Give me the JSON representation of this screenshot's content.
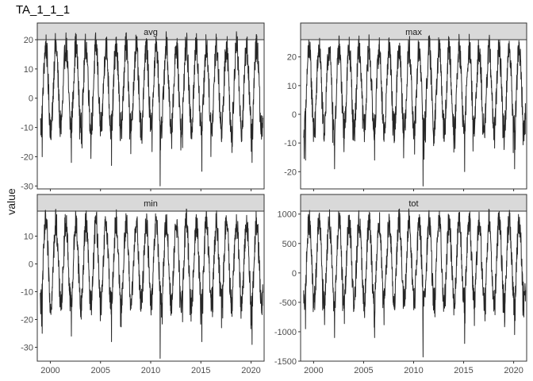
{
  "chart_data": {
    "type": "line",
    "title": "TA_1_1_1",
    "ylabel": "value",
    "xlabel": "",
    "grid": false,
    "facet_layout": "2x2",
    "x_range": [
      1998.7,
      2021.3
    ],
    "x_ticks": [
      2000,
      2005,
      2010,
      2015,
      2020
    ],
    "series_color": "#262626",
    "panels": [
      {
        "name": "avg",
        "ylim": [
          -31,
          20
        ],
        "y_ticks": [
          -30,
          -20,
          -10,
          0,
          10,
          20
        ],
        "cycle": {
          "start": 1999,
          "end": 2021,
          "peak": 18,
          "trough": -10,
          "noise": 5
        },
        "spikes": [
          {
            "x": 1999.2,
            "y": -20
          },
          {
            "x": 2002.1,
            "y": -22
          },
          {
            "x": 2006.1,
            "y": -23
          },
          {
            "x": 2010.95,
            "y": -30
          },
          {
            "x": 2015.1,
            "y": -25
          },
          {
            "x": 2020.1,
            "y": -22
          }
        ]
      },
      {
        "name": "max",
        "ylim": [
          -26,
          26
        ],
        "y_ticks": [
          -20,
          -10,
          0,
          10,
          20
        ],
        "cycle": {
          "start": 1999,
          "end": 2021,
          "peak": 23,
          "trough": -5,
          "noise": 5
        },
        "spikes": [
          {
            "x": 1999.2,
            "y": -16
          },
          {
            "x": 2002.1,
            "y": -19
          },
          {
            "x": 2006.1,
            "y": -16
          },
          {
            "x": 2010.95,
            "y": -25
          },
          {
            "x": 2015.1,
            "y": -20
          },
          {
            "x": 2020.1,
            "y": -19
          }
        ]
      },
      {
        "name": "min",
        "ylim": [
          -35,
          19
        ],
        "y_ticks": [
          -30,
          -20,
          -10,
          0,
          10
        ],
        "cycle": {
          "start": 1999,
          "end": 2021,
          "peak": 15,
          "trough": -14,
          "noise": 5
        },
        "spikes": [
          {
            "x": 1999.2,
            "y": -25
          },
          {
            "x": 2002.1,
            "y": -26
          },
          {
            "x": 2006.1,
            "y": -28
          },
          {
            "x": 2010.95,
            "y": -34
          },
          {
            "x": 2015.1,
            "y": -28
          },
          {
            "x": 2020.1,
            "y": -29
          }
        ]
      },
      {
        "name": "tot",
        "ylim": [
          -1500,
          1050
        ],
        "y_ticks": [
          -1500,
          -1000,
          -500,
          0,
          500,
          1000
        ],
        "cycle": {
          "start": 1999,
          "end": 2021,
          "peak": 880,
          "trough": -480,
          "noise": 230
        },
        "spikes": [
          {
            "x": 1999.2,
            "y": -950
          },
          {
            "x": 2002.1,
            "y": -1100
          },
          {
            "x": 2006.1,
            "y": -1100
          },
          {
            "x": 2010.95,
            "y": -1430
          },
          {
            "x": 2015.1,
            "y": -1200
          },
          {
            "x": 2020.1,
            "y": -1050
          }
        ]
      }
    ]
  }
}
